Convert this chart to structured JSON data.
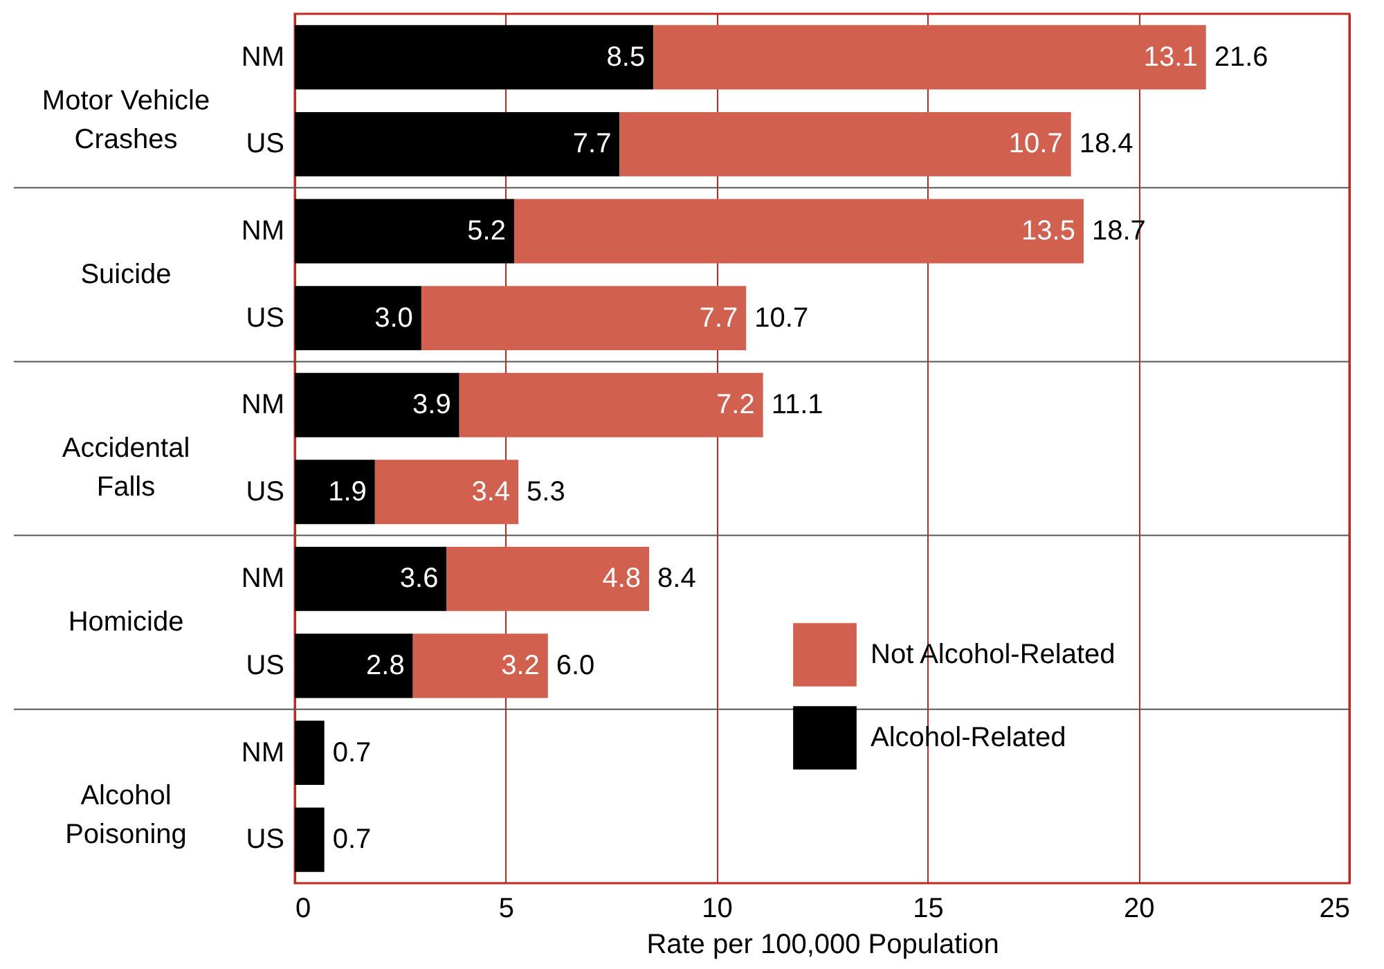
{
  "chart_data": {
    "type": "bar",
    "orientation": "horizontal",
    "stacked": true,
    "categories": [
      "NM",
      "US",
      "NM",
      "US",
      "NM",
      "US",
      "NM",
      "US",
      "NM",
      "US"
    ],
    "series": [
      {
        "name": "Alcohol-Related",
        "color": "#000000",
        "values": [
          8.5,
          7.7,
          5.2,
          3.0,
          3.9,
          1.9,
          3.6,
          2.8,
          0.7,
          0.7
        ],
        "value_labels": [
          "8.5",
          "7.7",
          "5.2",
          "3.0",
          "3.9",
          "1.9",
          "3.6",
          "2.8",
          null,
          null
        ]
      },
      {
        "name": "Not Alcohol-Related",
        "color": "#d2604f",
        "values": [
          13.1,
          10.7,
          13.5,
          7.7,
          7.2,
          3.4,
          4.8,
          3.2,
          null,
          null
        ],
        "value_labels": [
          "13.1",
          "10.7",
          "13.5",
          "7.7",
          "7.2",
          "3.4",
          "4.8",
          "3.2",
          null,
          null
        ]
      }
    ],
    "totals": [
      "21.6",
      "18.4",
      "18.7",
      "10.7",
      "11.1",
      "5.3",
      "8.4",
      "6.0",
      "0.7",
      "0.7"
    ],
    "annotations": [
      "Motor Vehicle Crashes",
      "Suicide",
      "Accidental Falls",
      "Homicide",
      "Alcohol Poisoning"
    ],
    "xlabel": "Rate per 100,000 Population",
    "xlim": [
      0,
      25
    ],
    "xticks": [
      0,
      5,
      10,
      15,
      20,
      25
    ],
    "grid": "x",
    "legend": "bottom right"
  }
}
